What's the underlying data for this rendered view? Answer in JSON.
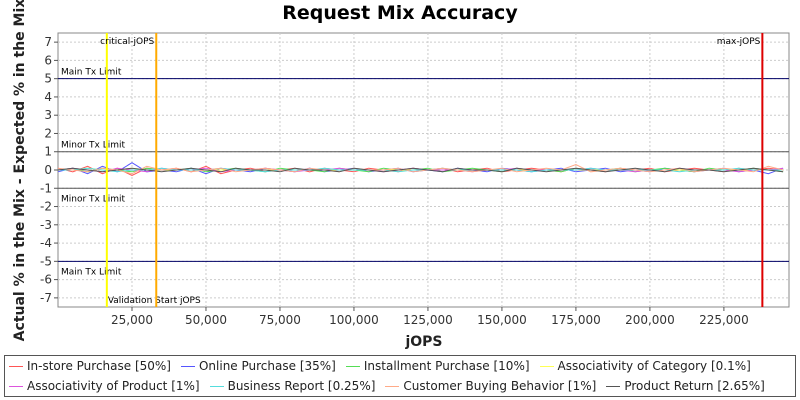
{
  "chart_data": {
    "type": "line",
    "title": "Request Mix Accuracy",
    "xlabel": "jOPS",
    "ylabel": "Actual % in the Mix - Expected % in the Mix",
    "xlim": [
      0,
      247000
    ],
    "ylim": [
      -7.5,
      7.5
    ],
    "x_ticks": [
      25000,
      50000,
      75000,
      100000,
      125000,
      150000,
      175000,
      200000,
      225000
    ],
    "x_tick_labels": [
      "25,000",
      "50,000",
      "75,000",
      "100,000",
      "125,000",
      "150,000",
      "175,000",
      "200,000",
      "225,000"
    ],
    "y_ticks": [
      -7,
      -6,
      -5,
      -4,
      -3,
      -2,
      -1,
      0,
      1,
      2,
      3,
      4,
      5,
      6,
      7
    ],
    "y_tick_labels": [
      "-7",
      "-6",
      "-5",
      "-4",
      "-3",
      "-2",
      "-1",
      "0",
      "1",
      "2",
      "3",
      "4",
      "5",
      "6",
      "7"
    ],
    "grid": true,
    "legend_position": "bottom",
    "limit_lines": [
      {
        "y": 5,
        "label": "Main Tx Limit",
        "color": "#000066"
      },
      {
        "y": -5,
        "label": "Main Tx Limit",
        "color": "#000066"
      },
      {
        "y": 1,
        "label": "Minor Tx Limit",
        "color": "#555555"
      },
      {
        "y": -1,
        "label": "Minor Tx Limit",
        "color": "#555555"
      }
    ],
    "vertical_markers": [
      {
        "x": 16500,
        "label": "Validation Start jOPS",
        "color": "#ffff00"
      },
      {
        "x": 33200,
        "label": "critical-jOPS",
        "color": "#ffaa00"
      },
      {
        "x": 238000,
        "label": "max-jOPS",
        "color": "#dd0000"
      }
    ],
    "x": [
      0,
      5000,
      10000,
      15000,
      20000,
      25000,
      30000,
      35000,
      40000,
      45000,
      50000,
      55000,
      60000,
      65000,
      70000,
      75000,
      80000,
      85000,
      90000,
      95000,
      100000,
      105000,
      110000,
      115000,
      120000,
      125000,
      130000,
      135000,
      140000,
      145000,
      150000,
      155000,
      160000,
      165000,
      170000,
      175000,
      180000,
      185000,
      190000,
      195000,
      200000,
      205000,
      210000,
      215000,
      220000,
      225000,
      230000,
      235000,
      240000,
      245000
    ],
    "series": [
      {
        "name": "In-store Purchase [50%]",
        "color": "#ff5555",
        "values": [
          0.1,
          -0.1,
          0.2,
          -0.2,
          0.1,
          -0.3,
          0.1,
          0.0,
          0.1,
          -0.1,
          0.2,
          -0.2,
          0.0,
          0.1,
          -0.1,
          0.0,
          0.1,
          -0.1,
          0.1,
          0.0,
          -0.1,
          0.1,
          0.0,
          -0.1,
          0.1,
          0.0,
          0.1,
          -0.1,
          0.0,
          0.1,
          -0.1,
          0.0,
          0.1,
          0.0,
          -0.1,
          0.1,
          0.0,
          -0.1,
          0.1,
          0.0,
          0.1,
          -0.1,
          0.0,
          0.1,
          0.0,
          -0.1,
          0.1,
          0.0,
          0.1,
          0.0
        ]
      },
      {
        "name": "Online Purchase [35%]",
        "color": "#5555ff",
        "values": [
          -0.1,
          0.1,
          -0.2,
          0.2,
          -0.1,
          0.4,
          -0.1,
          0.0,
          -0.1,
          0.1,
          -0.2,
          0.1,
          0.0,
          -0.1,
          0.1,
          0.0,
          -0.1,
          0.1,
          -0.1,
          0.0,
          0.1,
          -0.1,
          0.0,
          0.1,
          -0.1,
          0.0,
          -0.1,
          0.1,
          0.0,
          -0.1,
          0.1,
          0.0,
          -0.1,
          0.0,
          0.1,
          -0.1,
          0.0,
          0.1,
          -0.1,
          0.0,
          -0.1,
          0.1,
          0.0,
          -0.1,
          0.0,
          0.1,
          -0.1,
          0.0,
          -0.2,
          0.1
        ]
      },
      {
        "name": "Installment Purchase [10%]",
        "color": "#55dd55",
        "values": [
          0.0,
          0.1,
          -0.1,
          0.1,
          0.0,
          -0.1,
          0.1,
          0.0,
          0.0,
          0.1,
          -0.1,
          0.0,
          0.1,
          0.0,
          -0.1,
          0.1,
          0.0,
          0.0,
          -0.1,
          0.1,
          0.0,
          -0.1,
          0.1,
          0.0,
          0.0,
          0.1,
          -0.1,
          0.0,
          0.1,
          0.0,
          -0.1,
          0.1,
          0.0,
          0.0,
          -0.1,
          0.1,
          0.0,
          0.0,
          0.1,
          -0.1,
          0.0,
          0.1,
          0.0,
          -0.1,
          0.1,
          0.0,
          0.0,
          0.1,
          0.0,
          -0.1
        ]
      },
      {
        "name": "Associativity of Category [0.1%]",
        "color": "#ffff55",
        "values": [
          0.0,
          0.0,
          0.1,
          0.0,
          0.0,
          0.1,
          0.0,
          0.0,
          0.0,
          0.0,
          0.0,
          0.0,
          0.0,
          0.0,
          0.0,
          0.0,
          0.0,
          0.0,
          0.0,
          0.0,
          0.0,
          0.0,
          0.0,
          0.0,
          0.0,
          0.0,
          0.0,
          0.0,
          0.0,
          0.0,
          0.0,
          0.0,
          0.0,
          0.0,
          0.0,
          0.0,
          0.0,
          0.0,
          0.0,
          0.0,
          0.0,
          0.0,
          0.0,
          0.0,
          0.0,
          0.0,
          0.0,
          0.0,
          0.0,
          0.0
        ]
      },
      {
        "name": "Associativity of Product [1%]",
        "color": "#dd55dd",
        "values": [
          0.0,
          0.1,
          0.0,
          -0.1,
          0.1,
          0.0,
          -0.1,
          0.1,
          0.0,
          0.0,
          0.1,
          -0.1,
          0.0,
          0.0,
          0.1,
          0.0,
          -0.1,
          0.0,
          0.0,
          0.1,
          0.0,
          0.0,
          -0.1,
          0.0,
          0.1,
          0.0,
          0.0,
          0.0,
          -0.1,
          0.0,
          0.0,
          0.1,
          0.0,
          0.0,
          0.0,
          0.0,
          0.1,
          0.0,
          0.0,
          -0.1,
          0.0,
          0.0,
          0.1,
          0.0,
          0.0,
          0.0,
          -0.1,
          0.0,
          0.0,
          0.1
        ]
      },
      {
        "name": "Business Report [0.25%]",
        "color": "#55dddd",
        "values": [
          0.0,
          0.0,
          0.1,
          0.0,
          -0.1,
          0.0,
          0.0,
          0.1,
          0.0,
          0.0,
          0.0,
          0.1,
          0.0,
          0.0,
          -0.1,
          0.0,
          0.0,
          0.0,
          0.1,
          0.0,
          0.0,
          0.0,
          0.0,
          -0.1,
          0.0,
          0.0,
          0.1,
          0.0,
          0.0,
          0.0,
          0.0,
          0.0,
          -0.1,
          0.0,
          0.0,
          0.0,
          0.1,
          0.0,
          0.0,
          0.0,
          0.0,
          0.0,
          -0.1,
          0.0,
          0.0,
          0.0,
          0.1,
          0.0,
          0.0,
          0.0
        ]
      },
      {
        "name": "Customer Buying Behavior [1%]",
        "color": "#ffaa88",
        "values": [
          0.1,
          0.0,
          -0.1,
          0.1,
          0.0,
          -0.2,
          0.2,
          0.0,
          0.1,
          -0.1,
          0.0,
          0.1,
          -0.1,
          0.0,
          0.1,
          0.0,
          -0.1,
          0.1,
          0.0,
          -0.1,
          0.1,
          0.0,
          0.0,
          0.1,
          -0.1,
          0.0,
          0.1,
          0.0,
          -0.1,
          0.0,
          0.1,
          -0.1,
          0.0,
          0.1,
          0.0,
          0.3,
          -0.1,
          0.0,
          0.1,
          0.0,
          -0.1,
          0.0,
          0.1,
          -0.1,
          0.0,
          0.1,
          0.0,
          -0.1,
          0.2,
          0.0
        ]
      },
      {
        "name": "Product Return [2.65%]",
        "color": "#555555",
        "values": [
          0.0,
          0.1,
          0.0,
          -0.1,
          0.0,
          0.1,
          0.0,
          -0.1,
          0.0,
          0.1,
          0.0,
          -0.1,
          0.1,
          0.0,
          0.0,
          -0.1,
          0.1,
          0.0,
          0.0,
          -0.1,
          0.1,
          0.0,
          -0.1,
          0.0,
          0.1,
          0.0,
          -0.1,
          0.1,
          0.0,
          0.0,
          -0.1,
          0.1,
          0.0,
          -0.1,
          0.0,
          0.1,
          0.0,
          -0.1,
          0.0,
          0.1,
          0.0,
          -0.1,
          0.1,
          0.0,
          0.0,
          -0.1,
          0.0,
          0.1,
          0.0,
          -0.1
        ]
      }
    ]
  }
}
